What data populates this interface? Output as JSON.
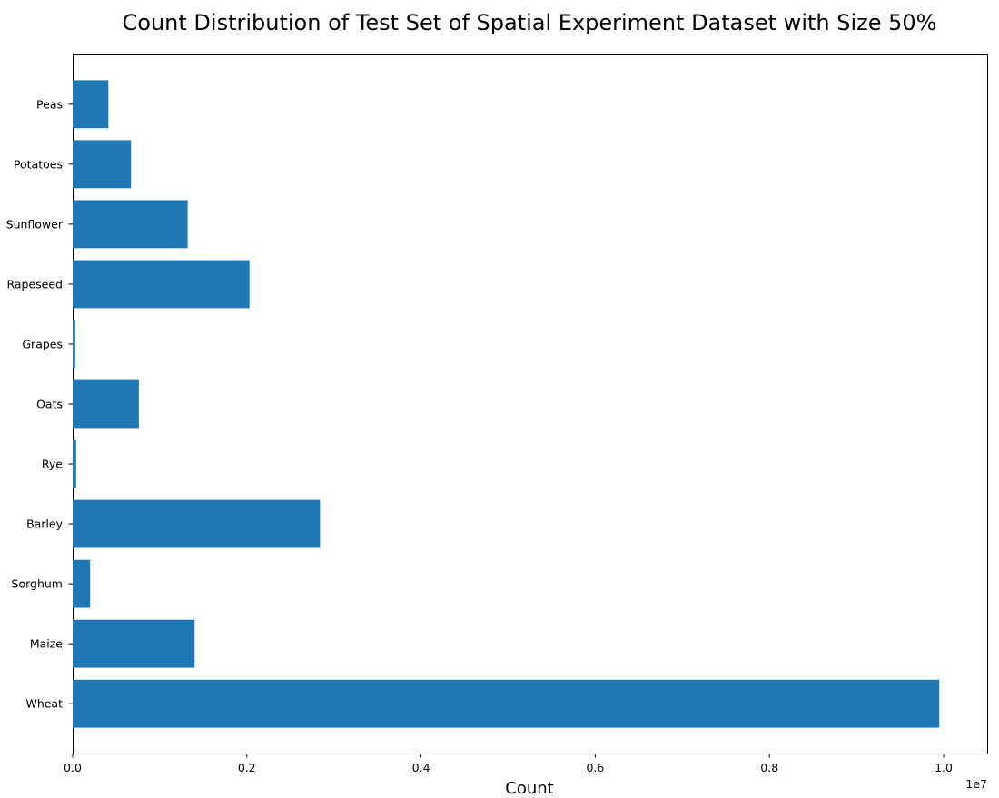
{
  "chart_data": {
    "type": "bar",
    "orientation": "horizontal",
    "title": "Count Distribution of Test Set of Spatial Experiment Dataset with Size 50%",
    "xlabel": "Count",
    "ylabel": "",
    "x_offset_label": "1e7",
    "x_tick_values": [
      0,
      2000000,
      4000000,
      6000000,
      8000000,
      10000000
    ],
    "x_tick_labels": [
      "0.0",
      "0.2",
      "0.4",
      "0.6",
      "0.8",
      "1.0"
    ],
    "xlim": [
      0,
      10500000
    ],
    "categories": [
      "Wheat",
      "Maize",
      "Sorghum",
      "Barley",
      "Rye",
      "Oats",
      "Grapes",
      "Rapeseed",
      "Sunflower",
      "Potatoes",
      "Peas"
    ],
    "values": [
      9950000,
      1400000,
      200000,
      2840000,
      40000,
      760000,
      30000,
      2030000,
      1320000,
      670000,
      410000
    ],
    "bar_color": "#1f77b4",
    "grid": false,
    "legend": "none"
  }
}
